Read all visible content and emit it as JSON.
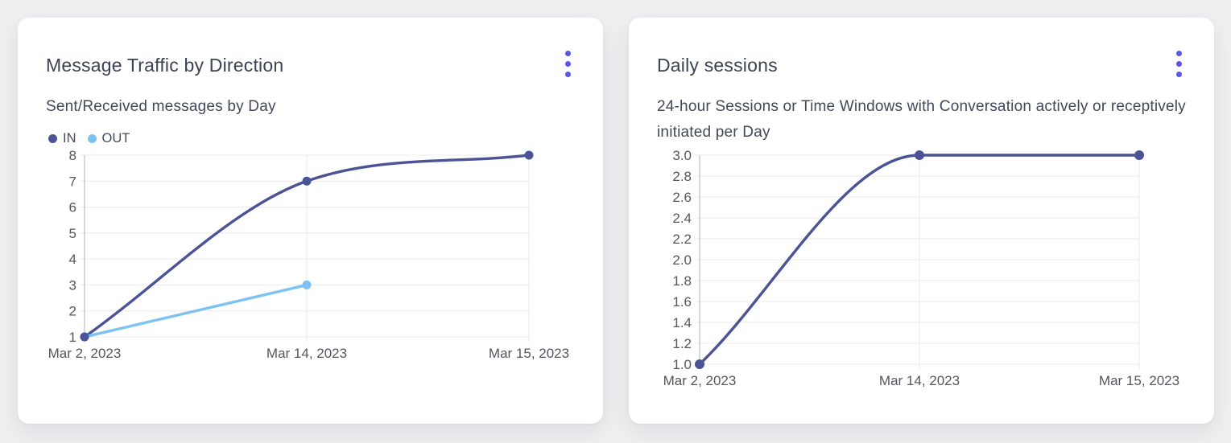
{
  "colors": {
    "accent": "#5b54e9",
    "title_text": "#3d4254",
    "subtitle_text": "#434859",
    "axis_text": "#55565e",
    "grid_line": "#ebebee",
    "axis_line": "#b0b0b8",
    "series_in": "#4b5296",
    "series_out": "#7cc3f4",
    "card_background": "#ffffff",
    "page_background": "#efeff1"
  },
  "cards": [
    {
      "title": "Message Traffic by Direction",
      "subtitle": "Sent/Received messages by Day"
    },
    {
      "title": "Daily sessions",
      "subtitle": "24-hour Sessions or Time Windows with Conversation actively or receptively initiated per Day"
    }
  ],
  "chart_data": [
    {
      "type": "line",
      "title": "Message Traffic by Direction",
      "subtitle": "Sent/Received messages by Day",
      "categories": [
        "Mar 2, 2023",
        "Mar 14, 2023",
        "Mar 15, 2023"
      ],
      "series": [
        {
          "name": "IN",
          "color": "#4b5296",
          "values": [
            1,
            7,
            8
          ]
        },
        {
          "name": "OUT",
          "color": "#7cc3f4",
          "values": [
            1,
            3,
            null
          ]
        }
      ],
      "ylim": [
        1,
        8
      ],
      "ytick_step": 1,
      "ytick_labels": [
        "1",
        "2",
        "3",
        "4",
        "5",
        "6",
        "7",
        "8"
      ],
      "grid": true,
      "legend_position": "top-left",
      "curve": "monotone"
    },
    {
      "type": "line",
      "title": "Daily sessions",
      "subtitle": "24-hour Sessions or Time Windows with Conversation actively or receptively initiated per Day",
      "categories": [
        "Mar 2, 2023",
        "Mar 14, 2023",
        "Mar 15, 2023"
      ],
      "series": [
        {
          "name": "Daily sessions",
          "color": "#4b5296",
          "values": [
            1.0,
            3.0,
            3.0
          ]
        }
      ],
      "ylim": [
        1.0,
        3.0
      ],
      "ytick_step": 0.2,
      "ytick_labels": [
        "1.0",
        "1.2",
        "1.4",
        "1.6",
        "1.8",
        "2.0",
        "2.2",
        "2.4",
        "2.6",
        "2.8",
        "3.0"
      ],
      "grid": true,
      "legend_position": "none",
      "curve": "monotone"
    }
  ]
}
